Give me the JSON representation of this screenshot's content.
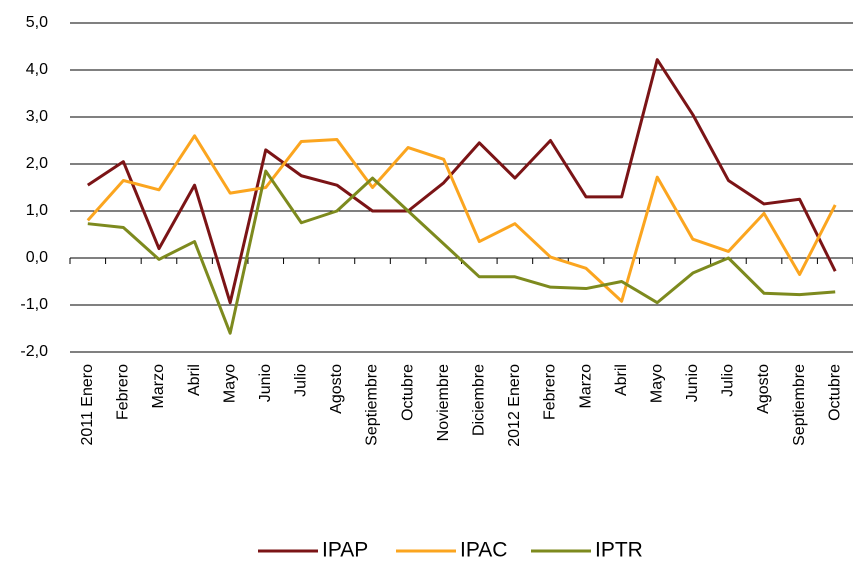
{
  "chart_data": {
    "type": "line",
    "categories": [
      "2011 Enero",
      "Febrero",
      "Marzo",
      "Abril",
      "Mayo",
      "Junio",
      "Julio",
      "Agosto",
      "Septiembre",
      "Octubre",
      "Noviembre",
      "Diciembre",
      "2012 Enero",
      "Febrero",
      "Marzo",
      "Abril",
      "Mayo",
      "Junio",
      "Julio",
      "Agosto",
      "Septiembre",
      "Octubre"
    ],
    "series": [
      {
        "name": "IPAP",
        "color": "#7b1416",
        "values": [
          1.55,
          2.05,
          0.2,
          1.55,
          -0.95,
          2.3,
          1.75,
          1.55,
          1.0,
          1.0,
          1.6,
          2.45,
          1.7,
          2.5,
          1.3,
          1.3,
          4.22,
          3.05,
          1.65,
          1.15,
          1.25,
          -0.28
        ]
      },
      {
        "name": "IPAC",
        "color": "#fba51f",
        "values": [
          0.8,
          1.65,
          1.45,
          2.6,
          1.38,
          1.5,
          2.48,
          2.52,
          1.5,
          2.35,
          2.1,
          0.35,
          0.73,
          0.02,
          -0.22,
          -0.92,
          1.72,
          0.4,
          0.14,
          0.95,
          -0.35,
          1.13
        ]
      },
      {
        "name": "IPTR",
        "color": "#7d8a1e",
        "values": [
          0.73,
          0.65,
          -0.03,
          0.35,
          -1.6,
          1.85,
          0.75,
          1.0,
          1.7,
          1.0,
          0.3,
          -0.4,
          -0.4,
          -0.62,
          -0.65,
          -0.5,
          -0.95,
          -0.32,
          0.0,
          -0.75,
          -0.78,
          -0.72
        ]
      }
    ],
    "ylim": [
      -2,
      5
    ],
    "yticks": [
      {
        "value": -2,
        "label": "-2,0"
      },
      {
        "value": -1,
        "label": "-1,0"
      },
      {
        "value": 0,
        "label": "0,0"
      },
      {
        "value": 1,
        "label": "1,0"
      },
      {
        "value": 2,
        "label": "2,0"
      },
      {
        "value": 3,
        "label": "3,0"
      },
      {
        "value": 4,
        "label": "4,0"
      },
      {
        "value": 5,
        "label": "5,0"
      }
    ],
    "grid": true,
    "legend": "bottom"
  }
}
